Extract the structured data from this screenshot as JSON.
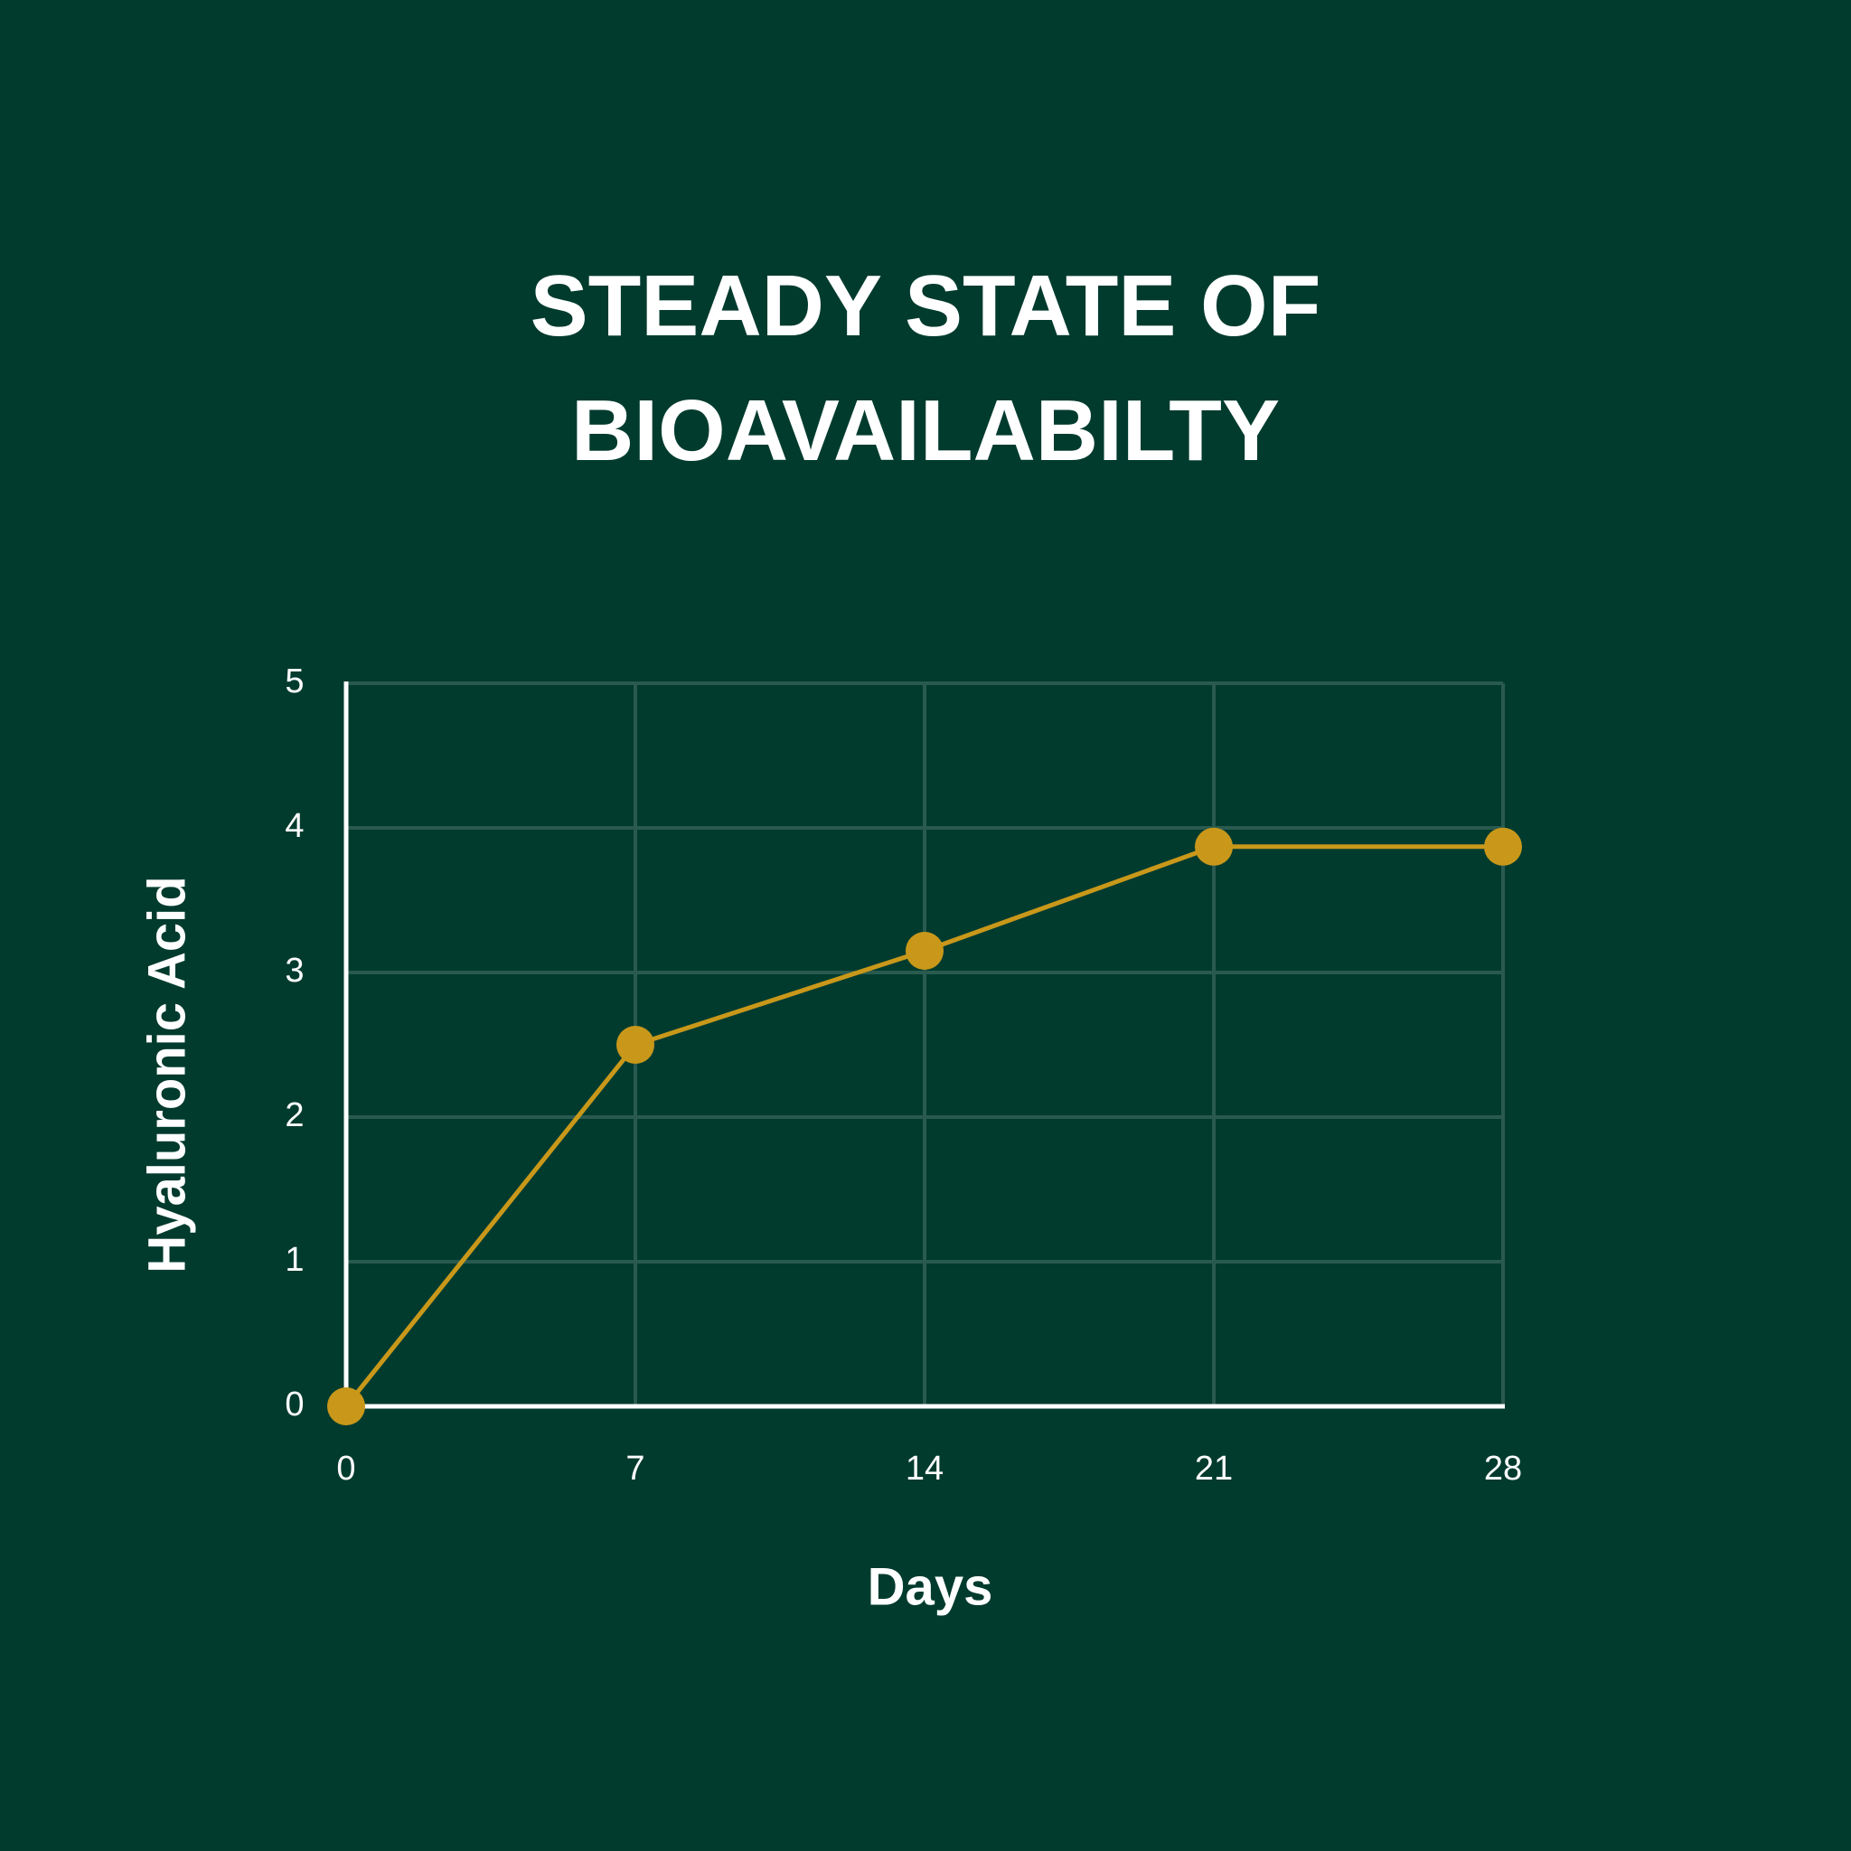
{
  "chart_data": {
    "type": "line",
    "title": "STEADY STATE OF BIOAVAILABILTY",
    "x_label": "Days",
    "y_label": "Hyaluronic Acid",
    "x": [
      0,
      7,
      14,
      21,
      28
    ],
    "series": [
      {
        "color": "#c9981a",
        "values": [
          0,
          2.5,
          3.15,
          3.87,
          3.87
        ]
      }
    ],
    "xlim": [
      0,
      28
    ],
    "xticks": [
      0,
      7,
      14,
      21,
      28
    ],
    "ylim": [
      0,
      5
    ],
    "yticks": [
      0,
      1,
      2,
      3,
      4,
      5
    ],
    "grid": true
  }
}
